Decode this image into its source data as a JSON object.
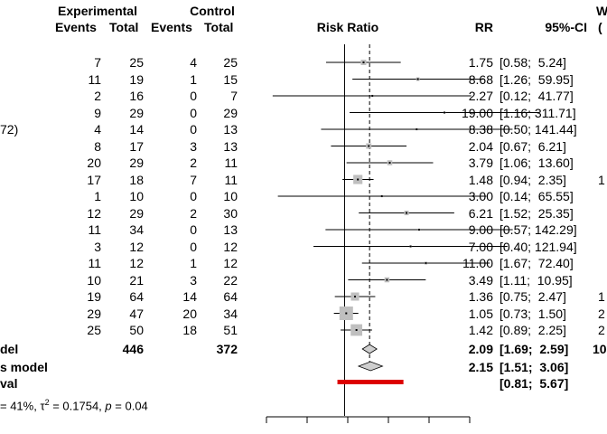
{
  "chart_data": {
    "type": "forest",
    "title": "",
    "headers": {
      "exp_group": "Experimental",
      "ctrl_group": "Control",
      "events": "Events",
      "total": "Total",
      "plot": "Risk Ratio",
      "rr": "RR",
      "ci": "95%-CI",
      "weight_top": "W",
      "weight_bottom": "("
    },
    "studies": [
      {
        "left": "",
        "e_ev": "7",
        "e_tot": "25",
        "c_ev": "4",
        "c_tot": "25",
        "rr": 1.75,
        "lo": 0.58,
        "hi": 5.24,
        "rr_text": "1.75",
        "ci_text": "[0.58;  5.24]",
        "w_text": "",
        "weight": 3.5
      },
      {
        "left": "",
        "e_ev": "11",
        "e_tot": "19",
        "c_ev": "1",
        "c_tot": "15",
        "rr": 8.68,
        "lo": 1.26,
        "hi": 59.95,
        "rr_text": "8.68",
        "ci_text": "[1.26;  59.95]",
        "w_text": "",
        "weight": 1.5
      },
      {
        "left": "",
        "e_ev": "2",
        "e_tot": "16",
        "c_ev": "0",
        "c_tot": "7",
        "rr": 2.27,
        "lo": 0.12,
        "hi": 41.77,
        "rr_text": "2.27",
        "ci_text": "[0.12;  41.77]",
        "w_text": "",
        "weight": 0.5
      },
      {
        "left": "",
        "e_ev": "9",
        "e_tot": "29",
        "c_ev": "0",
        "c_tot": "29",
        "rr": 19.0,
        "lo": 1.16,
        "hi": 311.71,
        "rr_text": "19.00",
        "ci_text": "[1.16; 311.71]",
        "w_text": "",
        "weight": 0.5
      },
      {
        "left": "72)",
        "e_ev": "4",
        "e_tot": "14",
        "c_ev": "0",
        "c_tot": "13",
        "rr": 8.38,
        "lo": 0.5,
        "hi": 141.44,
        "rr_text": "8.38",
        "ci_text": "[0.50; 141.44]",
        "w_text": "",
        "weight": 0.5
      },
      {
        "left": "",
        "e_ev": "8",
        "e_tot": "17",
        "c_ev": "3",
        "c_tot": "13",
        "rr": 2.04,
        "lo": 0.67,
        "hi": 6.21,
        "rr_text": "2.04",
        "ci_text": "[0.67;  6.21]",
        "w_text": "",
        "weight": 3.5
      },
      {
        "left": "",
        "e_ev": "20",
        "e_tot": "29",
        "c_ev": "2",
        "c_tot": "11",
        "rr": 3.79,
        "lo": 1.06,
        "hi": 13.6,
        "rr_text": "3.79",
        "ci_text": "[1.06;  13.60]",
        "w_text": "",
        "weight": 3.0
      },
      {
        "left": "",
        "e_ev": "17",
        "e_tot": "18",
        "c_ev": "7",
        "c_tot": "11",
        "rr": 1.48,
        "lo": 0.94,
        "hi": 2.35,
        "rr_text": "1.48",
        "ci_text": "[0.94;  2.35]",
        "w_text": "1",
        "weight": 10.0
      },
      {
        "left": "",
        "e_ev": "1",
        "e_tot": "10",
        "c_ev": "0",
        "c_tot": "10",
        "rr": 3.0,
        "lo": 0.14,
        "hi": 65.55,
        "rr_text": "3.00",
        "ci_text": "[0.14;  65.55]",
        "w_text": "",
        "weight": 0.5
      },
      {
        "left": "",
        "e_ev": "12",
        "e_tot": "29",
        "c_ev": "2",
        "c_tot": "30",
        "rr": 6.21,
        "lo": 1.52,
        "hi": 25.35,
        "rr_text": "6.21",
        "ci_text": "[1.52;  25.35]",
        "w_text": "",
        "weight": 2.5
      },
      {
        "left": "",
        "e_ev": "11",
        "e_tot": "34",
        "c_ev": "0",
        "c_tot": "13",
        "rr": 9.0,
        "lo": 0.57,
        "hi": 142.29,
        "rr_text": "9.00",
        "ci_text": "[0.57; 142.29]",
        "w_text": "",
        "weight": 0.5
      },
      {
        "left": "",
        "e_ev": "3",
        "e_tot": "12",
        "c_ev": "0",
        "c_tot": "12",
        "rr": 7.0,
        "lo": 0.4,
        "hi": 121.94,
        "rr_text": "7.00",
        "ci_text": "[0.40; 121.94]",
        "w_text": "",
        "weight": 0.5
      },
      {
        "left": "",
        "e_ev": "11",
        "e_tot": "12",
        "c_ev": "1",
        "c_tot": "12",
        "rr": 11.0,
        "lo": 1.67,
        "hi": 72.4,
        "rr_text": "11.00",
        "ci_text": "[1.67;  72.40]",
        "w_text": "",
        "weight": 1.0
      },
      {
        "left": "",
        "e_ev": "10",
        "e_tot": "21",
        "c_ev": "3",
        "c_tot": "22",
        "rr": 3.49,
        "lo": 1.11,
        "hi": 10.95,
        "rr_text": "3.49",
        "ci_text": "[1.11;  10.95]",
        "w_text": "",
        "weight": 3.0
      },
      {
        "left": "",
        "e_ev": "19",
        "e_tot": "64",
        "c_ev": "14",
        "c_tot": "64",
        "rr": 1.36,
        "lo": 0.75,
        "hi": 2.47,
        "rr_text": "1.36",
        "ci_text": "[0.75;  2.47]",
        "w_text": "1",
        "weight": 8.0
      },
      {
        "left": "",
        "e_ev": "29",
        "e_tot": "47",
        "c_ev": "20",
        "c_tot": "34",
        "rr": 1.05,
        "lo": 0.73,
        "hi": 1.5,
        "rr_text": "1.05",
        "ci_text": "[0.73;  1.50]",
        "w_text": "2",
        "weight": 22.0
      },
      {
        "left": "",
        "e_ev": "25",
        "e_tot": "50",
        "c_ev": "18",
        "c_tot": "51",
        "rr": 1.42,
        "lo": 0.89,
        "hi": 2.25,
        "rr_text": "1.42",
        "ci_text": "[0.89;  2.25]",
        "w_text": "2",
        "weight": 16.0
      }
    ],
    "summary": {
      "common": {
        "label": "del",
        "e_total": "446",
        "c_total": "372",
        "rr": 2.09,
        "lo": 1.69,
        "hi": 2.59,
        "rr_text": "2.09",
        "ci_text": "[1.69;  2.59]",
        "w_text": "10"
      },
      "random": {
        "label": "s model",
        "rr": 2.15,
        "lo": 1.51,
        "hi": 3.06,
        "rr_text": "2.15",
        "ci_text": "[1.51;  3.06]"
      },
      "prediction": {
        "label": "val",
        "lo": 0.81,
        "hi": 5.67,
        "ci_text": "[0.81;  5.67]"
      }
    },
    "heterogeneity": {
      "prefix": "= 41%, ",
      "tau": "τ",
      "tau_sup": "2",
      "tau_val": " = 0.1754, ",
      "p": "p",
      "p_val": " = 0.04"
    },
    "axis": {
      "scale": "log",
      "xlim": [
        0.1,
        40
      ],
      "null_value": 1
    },
    "colors": {
      "square": "#bfbfbf",
      "prediction": "#dd0000",
      "diamond_fill": "#cfcfcf",
      "line": "#000000"
    }
  }
}
